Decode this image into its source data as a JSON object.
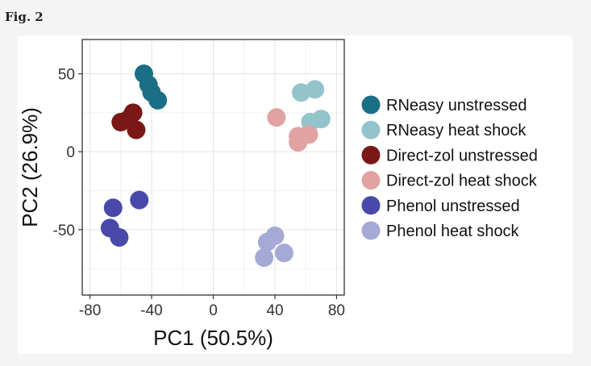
{
  "figure": {
    "label": "Fig. 2"
  },
  "chart_data": {
    "type": "scatter",
    "xlabel": "PC1 (50.5%)",
    "ylabel": "PC2 (26.9%)",
    "xlim": [
      -85,
      85
    ],
    "ylim": [
      -92,
      72
    ],
    "xticks": [
      -80,
      -40,
      0,
      40,
      80
    ],
    "yticks": [
      50,
      0,
      -50
    ],
    "grid": true,
    "legend_position": "right",
    "series": [
      {
        "name": "RNeasy unstressed",
        "color": "#1a6f86",
        "points": [
          [
            -45,
            50
          ],
          [
            -42,
            43
          ],
          [
            -40,
            38
          ],
          [
            -36,
            33
          ]
        ]
      },
      {
        "name": "RNeasy heat shock",
        "color": "#93c4cc",
        "points": [
          [
            57,
            38
          ],
          [
            66,
            40
          ],
          [
            63,
            19
          ],
          [
            70,
            21
          ]
        ]
      },
      {
        "name": "Direct-zol unstressed",
        "color": "#7a1818",
        "points": [
          [
            -52,
            25
          ],
          [
            -60,
            19
          ],
          [
            -55,
            21
          ],
          [
            -50,
            14
          ]
        ]
      },
      {
        "name": "Direct-zol heat shock",
        "color": "#e0a3a1",
        "points": [
          [
            41,
            22
          ],
          [
            55,
            10
          ],
          [
            55,
            6
          ],
          [
            62,
            11
          ]
        ]
      },
      {
        "name": "Phenol unstressed",
        "color": "#4849a8",
        "points": [
          [
            -48,
            -31
          ],
          [
            -65,
            -36
          ],
          [
            -67,
            -49
          ],
          [
            -61,
            -55
          ]
        ]
      },
      {
        "name": "Phenol heat shock",
        "color": "#a6a9d6",
        "points": [
          [
            40,
            -54
          ],
          [
            35,
            -58
          ],
          [
            46,
            -65
          ],
          [
            33,
            -68
          ]
        ]
      }
    ]
  }
}
